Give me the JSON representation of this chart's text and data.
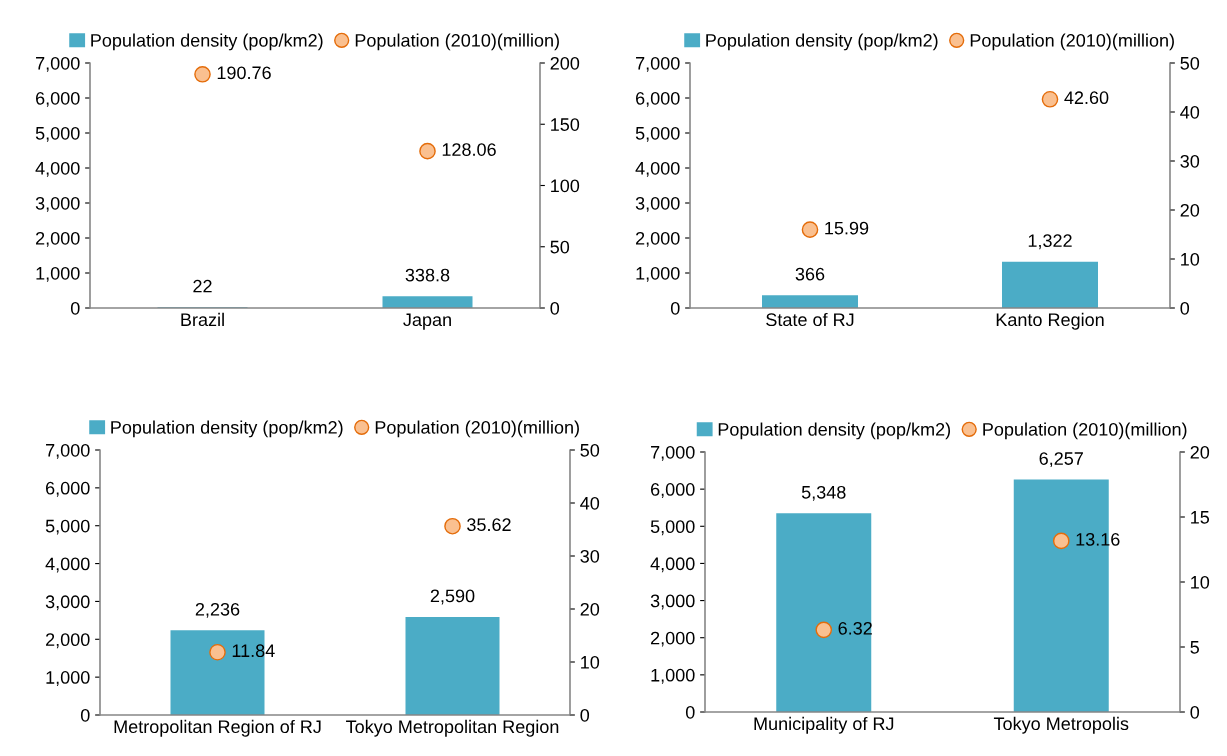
{
  "chart_data": [
    {
      "type": "bar",
      "categories": [
        "Brazil",
        "Japan"
      ],
      "legend": "top",
      "grid": false,
      "ylim": [
        0,
        7000
      ],
      "yticks": [
        0,
        {
          "value": 1000,
          "label": "1,000"
        },
        {
          "value": 2000,
          "label": "2,000"
        },
        {
          "value": 3000,
          "label": "3,000"
        },
        {
          "value": 4000,
          "label": "4,000"
        },
        {
          "value": 5000,
          "label": "5,000"
        },
        {
          "value": 6000,
          "label": "6,000"
        },
        {
          "value": 7000,
          "label": "7,000"
        }
      ],
      "y2lim": [
        0,
        200
      ],
      "y2ticks": [
        0,
        50,
        100,
        150,
        200
      ],
      "series": [
        {
          "name": "Population density (pop/km2)",
          "color": "#4bacc6",
          "values": [
            22,
            338.8
          ],
          "value_labels": [
            "22",
            "338.8"
          ]
        },
        {
          "name": "Population (2010)(million)",
          "type": "scatter",
          "axis": "y2",
          "marker": "circle",
          "color": "#fac090",
          "values": [
            190.76,
            128.06
          ],
          "value_labels": [
            "190.76",
            "128.06"
          ]
        }
      ]
    },
    {
      "type": "bar",
      "categories": [
        "State of RJ",
        "Kanto Region"
      ],
      "legend": "top",
      "grid": false,
      "ylim": [
        0,
        7000
      ],
      "yticks": [
        0,
        {
          "value": 1000,
          "label": "1,000"
        },
        {
          "value": 2000,
          "label": "2,000"
        },
        {
          "value": 3000,
          "label": "3,000"
        },
        {
          "value": 4000,
          "label": "4,000"
        },
        {
          "value": 5000,
          "label": "5,000"
        },
        {
          "value": 6000,
          "label": "6,000"
        },
        {
          "value": 7000,
          "label": "7,000"
        }
      ],
      "y2lim": [
        0,
        50
      ],
      "y2ticks": [
        0,
        10,
        20,
        30,
        40,
        50
      ],
      "series": [
        {
          "name": "Population density (pop/km2)",
          "color": "#4bacc6",
          "values": [
            366,
            1322
          ],
          "value_labels": [
            "366",
            "1,322"
          ]
        },
        {
          "name": "Population (2010)(million)",
          "type": "scatter",
          "axis": "y2",
          "marker": "circle",
          "color": "#fac090",
          "values": [
            15.99,
            42.6
          ],
          "value_labels": [
            "15.99",
            "42.60"
          ]
        }
      ]
    },
    {
      "type": "bar",
      "categories": [
        "Metropolitan Region of RJ",
        "Tokyo Metropolitan Region"
      ],
      "legend": "top",
      "grid": false,
      "ylim": [
        0,
        7000
      ],
      "yticks": [
        0,
        {
          "value": 1000,
          "label": "1,000"
        },
        {
          "value": 2000,
          "label": "2,000"
        },
        {
          "value": 3000,
          "label": "3,000"
        },
        {
          "value": 4000,
          "label": "4,000"
        },
        {
          "value": 5000,
          "label": "5,000"
        },
        {
          "value": 6000,
          "label": "6,000"
        },
        {
          "value": 7000,
          "label": "7,000"
        }
      ],
      "y2lim": [
        0,
        50
      ],
      "y2ticks": [
        0,
        10,
        20,
        30,
        40,
        50
      ],
      "series": [
        {
          "name": "Population density (pop/km2)",
          "color": "#4bacc6",
          "values": [
            2236,
            2590
          ],
          "value_labels": [
            "2,236",
            "2,590"
          ]
        },
        {
          "name": "Population (2010)(million)",
          "type": "scatter",
          "axis": "y2",
          "marker": "circle",
          "color": "#fac090",
          "values": [
            11.84,
            35.62
          ],
          "value_labels": [
            "11.84",
            "35.62"
          ]
        }
      ]
    },
    {
      "type": "bar",
      "categories": [
        "Municipality of RJ",
        "Tokyo Metropolis"
      ],
      "legend": "top",
      "grid": false,
      "ylim": [
        0,
        7000
      ],
      "yticks": [
        0,
        {
          "value": 1000,
          "label": "1,000"
        },
        {
          "value": 2000,
          "label": "2,000"
        },
        {
          "value": 3000,
          "label": "3,000"
        },
        {
          "value": 4000,
          "label": "4,000"
        },
        {
          "value": 5000,
          "label": "5,000"
        },
        {
          "value": 6000,
          "label": "6,000"
        },
        {
          "value": 7000,
          "label": "7,000"
        }
      ],
      "y2lim": [
        0,
        20
      ],
      "y2ticks": [
        0,
        5,
        10,
        15,
        20
      ],
      "series": [
        {
          "name": "Population density (pop/km2)",
          "color": "#4bacc6",
          "values": [
            5348,
            6257
          ],
          "value_labels": [
            "5,348",
            "6,257"
          ]
        },
        {
          "name": "Population (2010)(million)",
          "type": "scatter",
          "axis": "y2",
          "marker": "circle",
          "color": "#fac090",
          "values": [
            6.32,
            13.16
          ],
          "value_labels": [
            "6.32",
            "13.16"
          ]
        }
      ]
    }
  ]
}
